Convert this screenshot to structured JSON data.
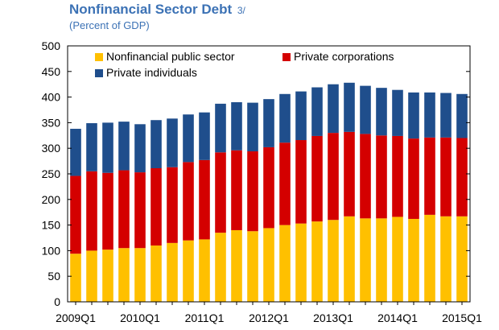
{
  "chart_data": {
    "type": "bar",
    "stacked": true,
    "title": "Nonfinancial Sector Debt",
    "title_note": "3/",
    "subtitle": "(Percent of GDP)",
    "xlabel": "",
    "ylabel": "",
    "ylim": [
      0,
      500
    ],
    "yticks": [
      0,
      50,
      100,
      150,
      200,
      250,
      300,
      350,
      400,
      450,
      500
    ],
    "xtick_labels": [
      "2009Q1",
      "2010Q1",
      "2011Q1",
      "2012Q1",
      "2013Q1",
      "2014Q1",
      "2015Q1"
    ],
    "categories": [
      "2009Q1",
      "2009Q2",
      "2009Q3",
      "2009Q4",
      "2010Q1",
      "2010Q2",
      "2010Q3",
      "2010Q4",
      "2011Q1",
      "2011Q2",
      "2011Q3",
      "2011Q4",
      "2012Q1",
      "2012Q2",
      "2012Q3",
      "2012Q4",
      "2013Q1",
      "2013Q2",
      "2013Q3",
      "2013Q4",
      "2014Q1",
      "2014Q2",
      "2014Q3",
      "2014Q4",
      "2015Q1"
    ],
    "series": [
      {
        "name": "Nonfinancial public sector",
        "color": "#ffc000",
        "values": [
          94,
          100,
          102,
          105,
          105,
          110,
          115,
          120,
          122,
          135,
          140,
          138,
          144,
          150,
          153,
          157,
          160,
          167,
          163,
          163,
          166,
          162,
          170,
          167,
          167
        ]
      },
      {
        "name": "Private corporations",
        "color": "#d40000",
        "values": [
          152,
          155,
          150,
          152,
          148,
          151,
          148,
          153,
          155,
          157,
          156,
          156,
          158,
          161,
          163,
          167,
          170,
          165,
          165,
          162,
          158,
          157,
          151,
          154,
          153
        ]
      },
      {
        "name": "Private individuals",
        "color": "#1f4e8c",
        "values": [
          92,
          94,
          98,
          95,
          94,
          94,
          95,
          93,
          93,
          95,
          94,
          95,
          94,
          95,
          95,
          95,
          95,
          96,
          94,
          93,
          90,
          90,
          88,
          87,
          86
        ]
      }
    ],
    "legend_position": "top-left"
  }
}
